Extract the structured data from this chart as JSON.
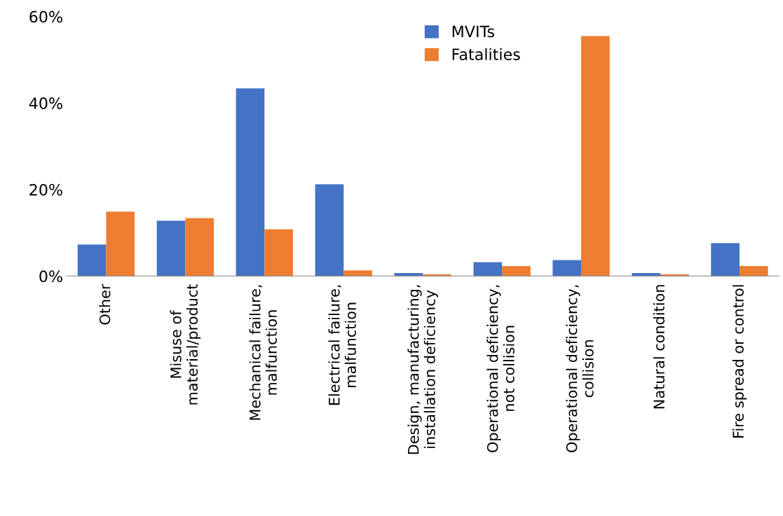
{
  "chart_data": {
    "type": "bar",
    "categories": [
      "Other",
      "Misuse of\nmaterial/product",
      "Mechanical failure,\nmalfunction",
      "Electrical failure,\nmalfunction",
      "Design, manufacturing,\ninstallation deficiency",
      "Operational deficiency,\nnot collision",
      "Operational deficiency,\ncollision",
      "Natural condition",
      "Fire spread or control"
    ],
    "series": [
      {
        "name": "MVITs",
        "color": "#4472c4",
        "values": [
          7.3,
          12.8,
          43.4,
          21.2,
          0.7,
          3.2,
          3.7,
          0.7,
          7.6
        ]
      },
      {
        "name": "Fatalities",
        "color": "#ed7d31",
        "values": [
          14.9,
          13.4,
          10.8,
          1.3,
          0.4,
          2.3,
          55.5,
          0.4,
          2.3
        ]
      }
    ],
    "ylim": [
      0,
      60
    ],
    "yticks": [
      {
        "value": 0,
        "label": "0%"
      },
      {
        "value": 20,
        "label": "20%"
      },
      {
        "value": 40,
        "label": "40%"
      },
      {
        "value": 60,
        "label": "60%"
      }
    ],
    "grid": false,
    "legend": "top"
  }
}
